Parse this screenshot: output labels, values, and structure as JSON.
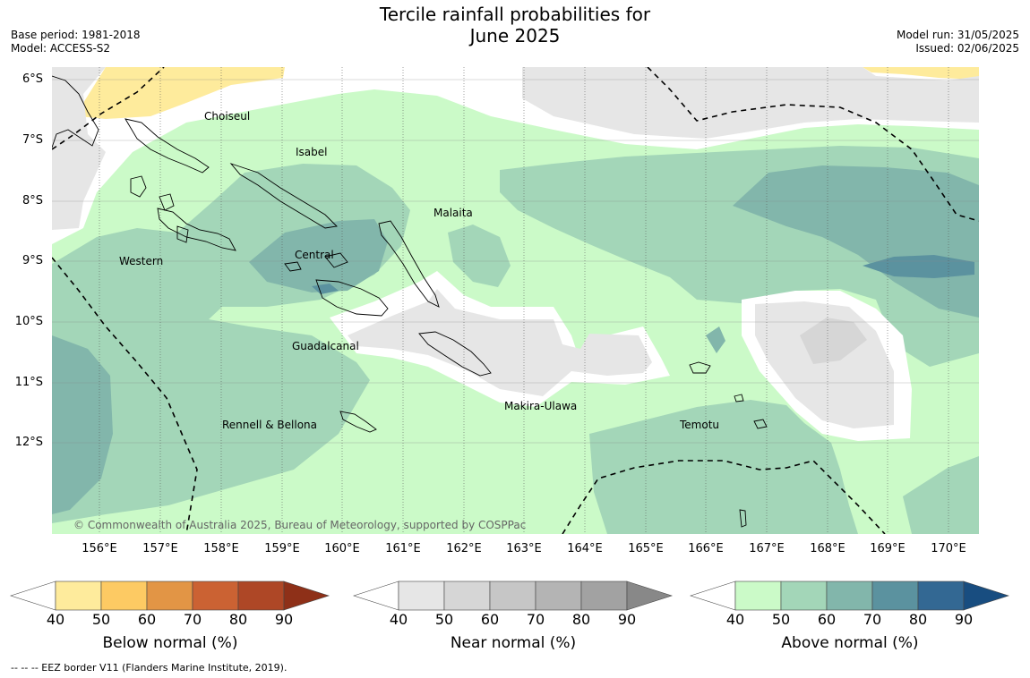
{
  "header": {
    "title_line1": "Tercile rainfall probabilities for",
    "title_line2": "June 2025",
    "base_period": "Base period: 1981-2018",
    "model": "Model: ACCESS-S2",
    "model_run": "Model run: 31/05/2025",
    "issued": "Issued: 02/06/2025"
  },
  "map": {
    "lat_labels": [
      "6°S",
      "7°S",
      "8°S",
      "9°S",
      "10°S",
      "11°S",
      "12°S"
    ],
    "lon_labels": [
      "156°E",
      "157°E",
      "158°E",
      "159°E",
      "160°E",
      "161°E",
      "162°E",
      "163°E",
      "164°E",
      "165°E",
      "166°E",
      "167°E",
      "168°E",
      "169°E",
      "170°E"
    ],
    "regions": [
      "Choiseul",
      "Isabel",
      "Malaita",
      "Central",
      "Western",
      "Guadalcanal",
      "Makira-Ulawa",
      "Temotu",
      "Rennell & Bellona"
    ],
    "copyright": "© Commonwealth of Australia 2025, Bureau of Meteorology, supported by COSPPac",
    "eez_line_style": "dashed"
  },
  "colorbars": [
    {
      "title": "Below normal (%)",
      "ticks": [
        "40",
        "50",
        "60",
        "70",
        "80",
        "90"
      ],
      "colors": [
        "#ffffff",
        "#feeb9c",
        "#fdca63",
        "#e29545",
        "#cb6233",
        "#ae4726",
        "#8e3018"
      ]
    },
    {
      "title": "Near normal (%)",
      "ticks": [
        "40",
        "50",
        "60",
        "70",
        "80",
        "90"
      ],
      "colors": [
        "#ffffff",
        "#e6e6e6",
        "#d6d6d6",
        "#c6c6c6",
        "#b4b4b4",
        "#a2a2a2",
        "#888888"
      ]
    },
    {
      "title": "Above normal (%)",
      "ticks": [
        "40",
        "50",
        "60",
        "70",
        "80",
        "90"
      ],
      "colors": [
        "#ffffff",
        "#cbfac8",
        "#a3d6b8",
        "#82b6ab",
        "#5b929f",
        "#336893",
        "#184d80"
      ]
    }
  ],
  "footer": {
    "eez_note": "--  --  -- EEZ border V11 (Flanders Marine Institute, 2019)."
  }
}
